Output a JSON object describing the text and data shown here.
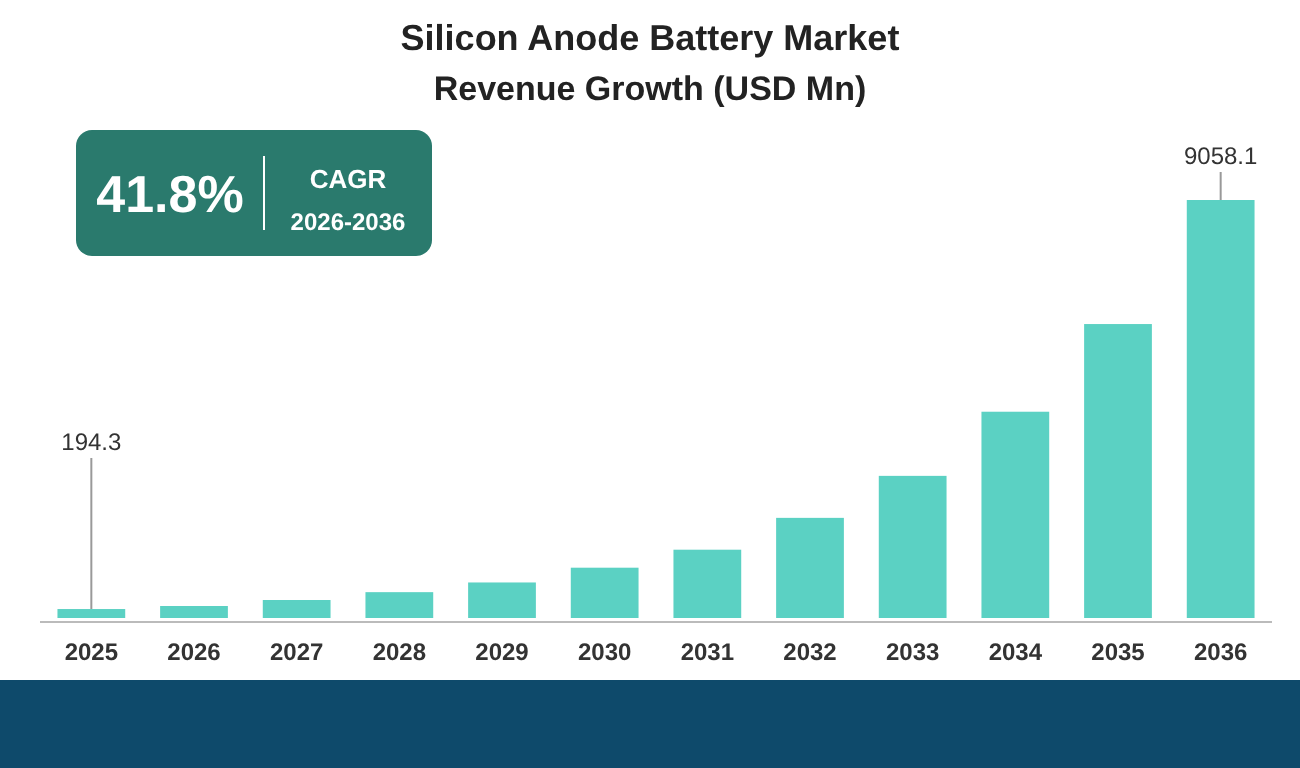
{
  "chart_data": {
    "type": "bar",
    "title": "Silicon Anode Battery Market",
    "subtitle": "Revenue Growth (USD Mn)",
    "categories": [
      "2025",
      "2026",
      "2027",
      "2028",
      "2029",
      "2030",
      "2031",
      "2032",
      "2033",
      "2034",
      "2035",
      "2036"
    ],
    "values": [
      194.3,
      260,
      390,
      560,
      770,
      1090,
      1480,
      2170,
      3080,
      4470,
      6370,
      9058.1
    ],
    "value_labels": [
      "194.3",
      null,
      null,
      null,
      null,
      null,
      null,
      null,
      null,
      null,
      null,
      "9058.1"
    ],
    "color": "#5bd1c3",
    "annotations": [
      "41.8%",
      "CAGR",
      "2026-2036"
    ]
  }
}
